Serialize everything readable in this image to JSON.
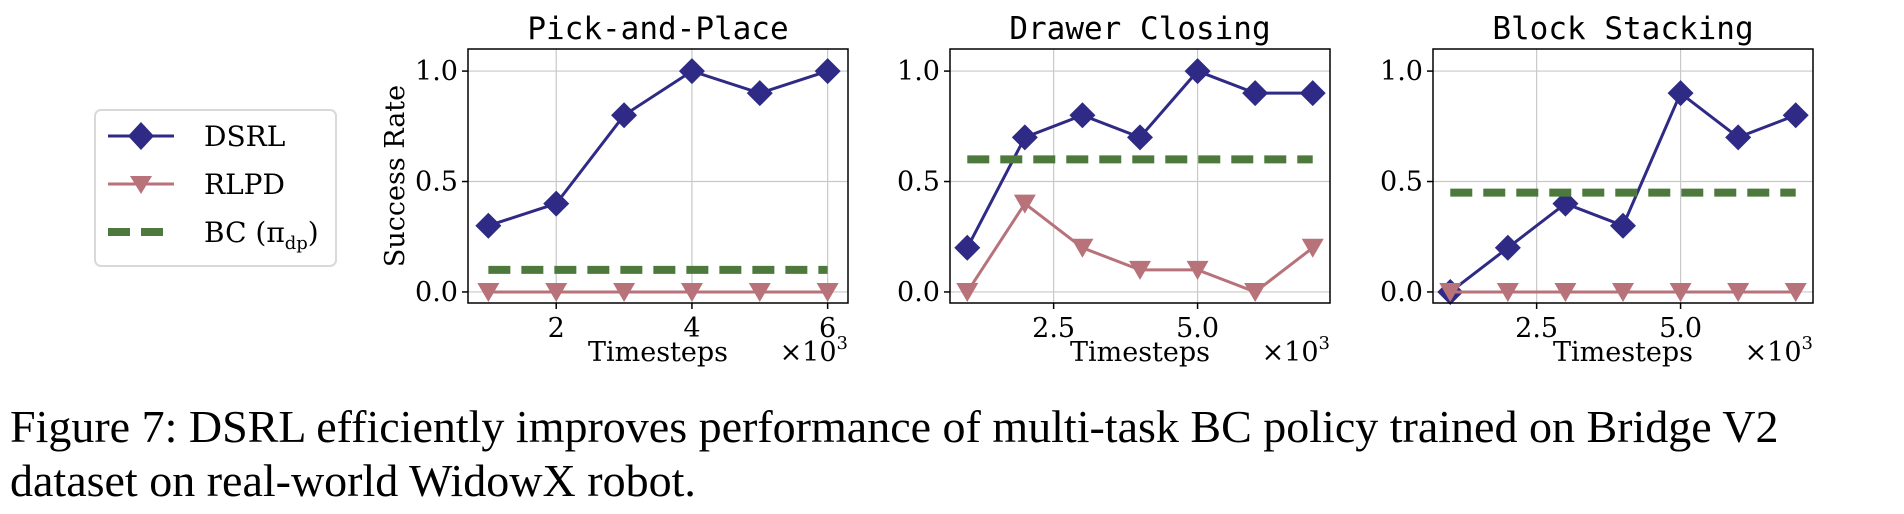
{
  "legend": {
    "entries": [
      {
        "label": "DSRL",
        "color": "#2e2a85",
        "marker": "diamond",
        "style": "solid"
      },
      {
        "label": "RLPD",
        "color": "#b8727a",
        "marker": "triangle-down",
        "style": "solid"
      },
      {
        "label": "BC (π",
        "sub": "dp",
        "close": ")",
        "color": "#4d7a3c",
        "marker": "none",
        "style": "dashed"
      }
    ]
  },
  "caption": {
    "line1": "Figure 7: DSRL efficiently improves performance of multi-task BC policy trained on Bridge V2",
    "line2": "dataset on real-world WidowX robot."
  },
  "chart_data": [
    {
      "type": "line",
      "title": "Pick-and-Place",
      "xlabel": "Timesteps",
      "x_multiplier_label": "×10",
      "x_multiplier_exp": "3",
      "ylabel": "Success Rate",
      "xlim": [
        0.7,
        6.3
      ],
      "ylim": [
        -0.05,
        1.1
      ],
      "xticks": [
        2,
        4,
        6
      ],
      "xtick_labels": [
        "2",
        "4",
        "6"
      ],
      "yticks": [
        0.0,
        0.5,
        1.0
      ],
      "ytick_labels": [
        "0.0",
        "0.5",
        "1.0"
      ],
      "grid": true,
      "series": [
        {
          "name": "DSRL",
          "x": [
            1,
            2,
            3,
            4,
            5,
            6
          ],
          "y": [
            0.3,
            0.4,
            0.8,
            1.0,
            0.9,
            1.0
          ]
        },
        {
          "name": "RLPD",
          "x": [
            1,
            2,
            3,
            4,
            5,
            6
          ],
          "y": [
            0.0,
            0.0,
            0.0,
            0.0,
            0.0,
            0.0
          ]
        },
        {
          "name": "BC",
          "hline": 0.1,
          "x_range": [
            1,
            6
          ]
        }
      ]
    },
    {
      "type": "line",
      "title": "Drawer Closing",
      "xlabel": "Timesteps",
      "x_multiplier_label": "×10",
      "x_multiplier_exp": "3",
      "ylabel": "",
      "xlim": [
        0.7,
        7.3
      ],
      "ylim": [
        -0.05,
        1.1
      ],
      "xticks": [
        2.5,
        5.0
      ],
      "xtick_labels": [
        "2.5",
        "5.0"
      ],
      "yticks": [
        0.0,
        0.5,
        1.0
      ],
      "ytick_labels": [
        "0.0",
        "0.5",
        "1.0"
      ],
      "grid": true,
      "series": [
        {
          "name": "DSRL",
          "x": [
            1,
            2,
            3,
            4,
            5,
            6,
            7
          ],
          "y": [
            0.2,
            0.7,
            0.8,
            0.7,
            1.0,
            0.9,
            0.9
          ]
        },
        {
          "name": "RLPD",
          "x": [
            1,
            2,
            3,
            4,
            5,
            6,
            7
          ],
          "y": [
            0.0,
            0.4,
            0.2,
            0.1,
            0.1,
            0.0,
            0.2
          ]
        },
        {
          "name": "BC",
          "hline": 0.6,
          "x_range": [
            1,
            7
          ]
        }
      ]
    },
    {
      "type": "line",
      "title": "Block Stacking",
      "xlabel": "Timesteps",
      "x_multiplier_label": "×10",
      "x_multiplier_exp": "3",
      "ylabel": "",
      "xlim": [
        0.7,
        7.3
      ],
      "ylim": [
        -0.05,
        1.1
      ],
      "xticks": [
        2.5,
        5.0
      ],
      "xtick_labels": [
        "2.5",
        "5.0"
      ],
      "yticks": [
        0.0,
        0.5,
        1.0
      ],
      "ytick_labels": [
        "0.0",
        "0.5",
        "1.0"
      ],
      "grid": true,
      "series": [
        {
          "name": "DSRL",
          "x": [
            1,
            2,
            3,
            4,
            5,
            6,
            7
          ],
          "y": [
            0.0,
            0.2,
            0.4,
            0.3,
            0.9,
            0.7,
            0.8
          ]
        },
        {
          "name": "RLPD",
          "x": [
            1,
            2,
            3,
            4,
            5,
            6,
            7
          ],
          "y": [
            0.0,
            0.0,
            0.0,
            0.0,
            0.0,
            0.0,
            0.0
          ]
        },
        {
          "name": "BC",
          "hline": 0.45,
          "x_range": [
            1,
            7
          ]
        }
      ]
    }
  ]
}
